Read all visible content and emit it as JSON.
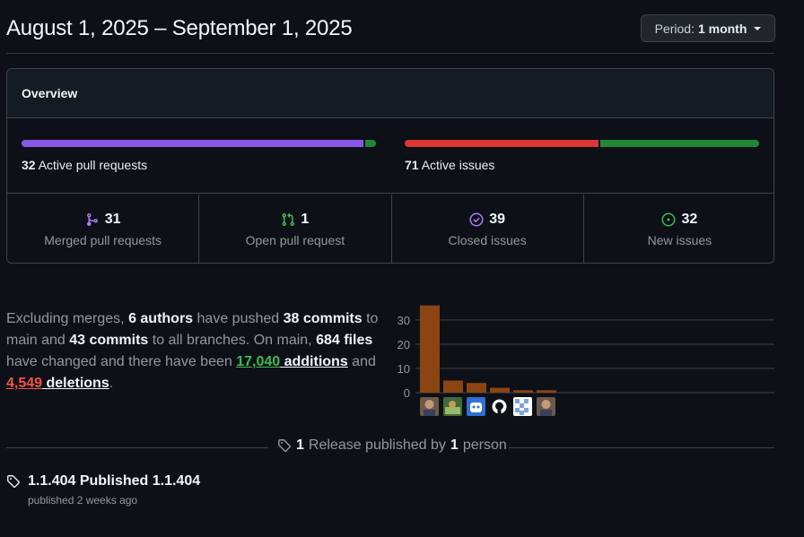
{
  "header": {
    "title": "August 1, 2025 – September 1, 2025",
    "period_label": "Period:",
    "period_value": "1 month"
  },
  "overview": {
    "title": "Overview",
    "pull_requests": {
      "count": "32",
      "label": "Active pull requests",
      "merged_fraction": 0.97,
      "open_fraction": 0.03,
      "colors": [
        "#8957e5",
        "#238636"
      ]
    },
    "issues": {
      "count": "71",
      "label": "Active issues",
      "closed_fraction": 0.55,
      "new_fraction": 0.45,
      "colors": [
        "#da3633",
        "#238636"
      ]
    },
    "stats": [
      {
        "icon": "merge-icon",
        "count": "31",
        "label": "Merged pull requests",
        "color": "#ab7df8"
      },
      {
        "icon": "pull-request-icon",
        "count": "1",
        "label": "Open pull request",
        "color": "#3fb950"
      },
      {
        "icon": "issue-closed-icon",
        "count": "39",
        "label": "Closed issues",
        "color": "#ab7df8"
      },
      {
        "icon": "issue-opened-icon",
        "count": "32",
        "label": "New issues",
        "color": "#3fb950"
      }
    ]
  },
  "summary": {
    "t1": "Excluding merges, ",
    "authors": "6 authors",
    "t2": " have pushed ",
    "commits_main": "38 commits",
    "t3": " to main and ",
    "commits_all": "43 commits",
    "t4": " to all branches. On main, ",
    "files": "684 files",
    "t5": " have changed and there have been ",
    "additions_num": "17,040",
    "additions_word": " additions",
    "t6": " and ",
    "deletions_num": "4,549",
    "deletions_word": " deletions",
    "t7": "."
  },
  "chart_data": {
    "type": "bar",
    "categories": [
      "author-1",
      "author-2",
      "author-3",
      "author-4",
      "author-5",
      "author-6"
    ],
    "values": [
      36,
      5,
      4,
      2,
      1,
      1
    ],
    "yticks": [
      "0",
      "10",
      "20",
      "30"
    ],
    "ylim": [
      0,
      37
    ],
    "bar_color": "#8b4513",
    "avatars": [
      "avatar-photo",
      "avatar-landscape",
      "avatar-bot",
      "github-icon",
      "avatar-identicon",
      "avatar-photo"
    ]
  },
  "releases": {
    "count": "1",
    "t1": " Release published by ",
    "people": "1",
    "t2": " person"
  },
  "release": {
    "title": "1.1.404 Published 1.1.404",
    "subtitle": "published 2 weeks ago"
  }
}
